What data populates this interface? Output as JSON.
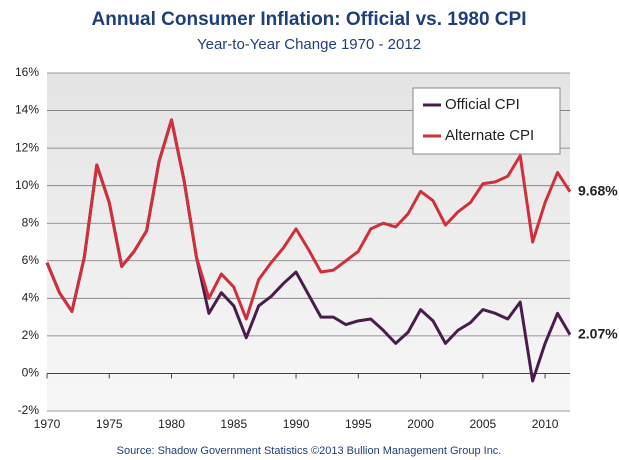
{
  "chart_data": {
    "type": "line",
    "title": "Annual Consumer Inflation: Official vs. 1980 CPI",
    "subtitle": "Year-to-Year Change 1970 - 2012",
    "source": "Source: Shadow Government Statistics  ©2013 Bullion Management Group Inc.",
    "x": [
      1970,
      1971,
      1972,
      1973,
      1974,
      1975,
      1976,
      1977,
      1978,
      1979,
      1980,
      1981,
      1982,
      1983,
      1984,
      1985,
      1986,
      1987,
      1988,
      1989,
      1990,
      1991,
      1992,
      1993,
      1994,
      1995,
      1996,
      1997,
      1998,
      1999,
      2000,
      2001,
      2002,
      2003,
      2004,
      2005,
      2006,
      2007,
      2008,
      2009,
      2010,
      2011,
      2012
    ],
    "xlim": [
      1970,
      2012
    ],
    "xticks": [
      1970,
      1975,
      1980,
      1985,
      1990,
      1995,
      2000,
      2005,
      2010
    ],
    "ylim": [
      -2,
      16
    ],
    "yticks": [
      {
        "value": -2,
        "label": "-2%"
      },
      {
        "value": 0,
        "label": "0%"
      },
      {
        "value": 2,
        "label": "2%"
      },
      {
        "value": 4,
        "label": "4%"
      },
      {
        "value": 6,
        "label": "6%"
      },
      {
        "value": 8,
        "label": "8%"
      },
      {
        "value": 10,
        "label": "10%"
      },
      {
        "value": 12,
        "label": "12%"
      },
      {
        "value": 14,
        "label": "14%"
      },
      {
        "value": 16,
        "label": "16%"
      }
    ],
    "grid": true,
    "legend": "upper right",
    "series": [
      {
        "name": "Official CPI",
        "color": "#4a1c4e",
        "values": [
          5.9,
          4.3,
          3.3,
          6.2,
          11.1,
          9.1,
          5.7,
          6.5,
          7.6,
          11.3,
          13.5,
          10.3,
          6.2,
          3.2,
          4.3,
          3.6,
          1.9,
          3.6,
          4.1,
          4.8,
          5.4,
          4.2,
          3.0,
          3.0,
          2.6,
          2.8,
          2.9,
          2.3,
          1.6,
          2.2,
          3.4,
          2.8,
          1.6,
          2.3,
          2.7,
          3.4,
          3.2,
          2.9,
          3.8,
          -0.4,
          1.6,
          3.2,
          2.07
        ],
        "value_labels": [
          null,
          null,
          null,
          null,
          null,
          null,
          null,
          null,
          null,
          null,
          null,
          null,
          null,
          null,
          null,
          null,
          null,
          null,
          null,
          null,
          null,
          null,
          null,
          null,
          null,
          null,
          null,
          null,
          null,
          null,
          null,
          null,
          null,
          null,
          null,
          null,
          null,
          null,
          null,
          null,
          null,
          null,
          "2.07%"
        ]
      },
      {
        "name": "Alternate CPI",
        "color": "#d0303a",
        "values": [
          5.9,
          4.3,
          3.3,
          6.2,
          11.1,
          9.1,
          5.7,
          6.5,
          7.6,
          11.3,
          13.5,
          10.3,
          6.2,
          4.0,
          5.3,
          4.6,
          2.9,
          5.0,
          5.9,
          6.7,
          7.7,
          6.6,
          5.4,
          5.5,
          6.0,
          6.5,
          7.7,
          8.0,
          7.8,
          8.5,
          9.7,
          9.2,
          7.9,
          8.6,
          9.1,
          10.1,
          10.2,
          10.5,
          11.6,
          7.0,
          9.1,
          10.7,
          9.68
        ],
        "value_labels": [
          null,
          null,
          null,
          null,
          null,
          null,
          null,
          null,
          null,
          null,
          null,
          null,
          null,
          null,
          null,
          null,
          null,
          null,
          null,
          null,
          null,
          null,
          null,
          null,
          null,
          null,
          null,
          null,
          null,
          null,
          null,
          null,
          null,
          null,
          null,
          null,
          null,
          null,
          null,
          null,
          null,
          null,
          "9.68%"
        ]
      }
    ]
  }
}
